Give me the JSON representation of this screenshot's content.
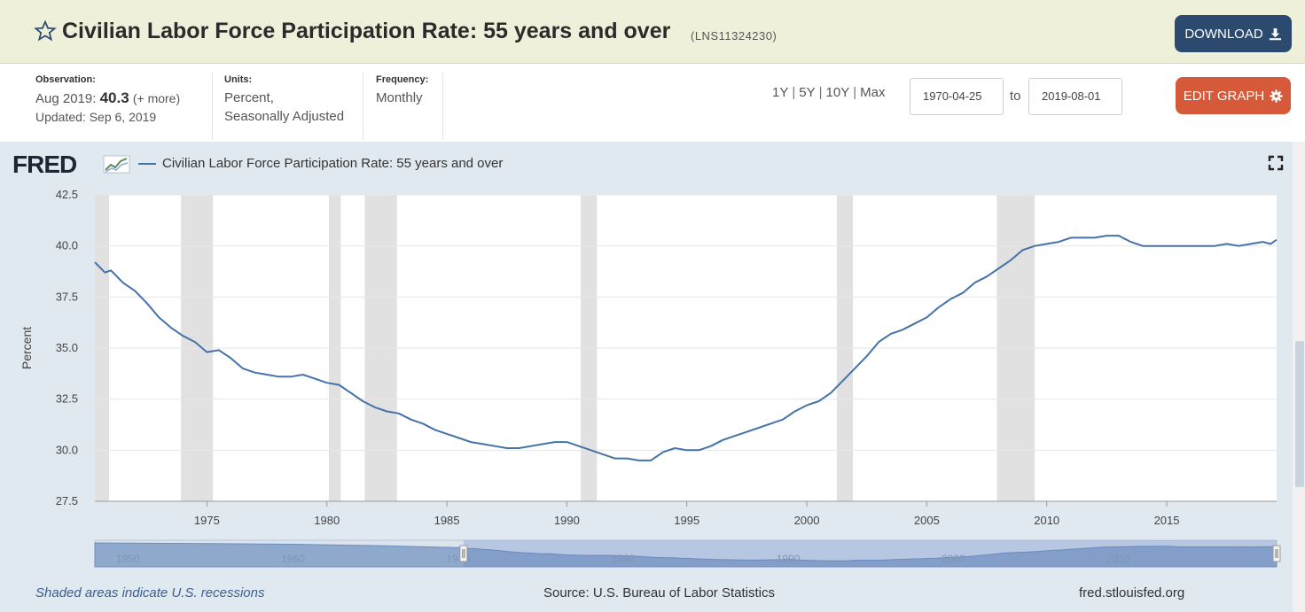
{
  "header": {
    "title": "Civilian Labor Force Participation Rate: 55 years and over",
    "series_id": "(LNS11324230)",
    "download_label": "DOWNLOAD",
    "star_icon": "star-outline-icon",
    "download_icon": "download-icon"
  },
  "meta": {
    "observation": {
      "label": "Observation:",
      "date": "Aug 2019:",
      "value": "40.3",
      "more": "(+ more)",
      "updated": "Updated: Sep 6, 2019"
    },
    "units": {
      "label": "Units:",
      "line1": "Percent,",
      "line2": "Seasonally Adjusted"
    },
    "frequency": {
      "label": "Frequency:",
      "value": "Monthly"
    }
  },
  "controls": {
    "range_1y": "1Y",
    "range_5y": "5Y",
    "range_10y": "10Y",
    "range_max": "Max",
    "start_date": "1970-04-25",
    "to_label": "to",
    "end_date": "2019-08-01",
    "edit_label": "EDIT GRAPH",
    "edit_icon": "gear-icon"
  },
  "graph": {
    "logo": "FRED",
    "legend": "Civilian Labor Force Participation Rate: 55 years and over",
    "fullscreen_icon": "fullscreen-icon"
  },
  "footer": {
    "recession_note": "Shaded areas indicate U.S. recessions",
    "source": "Source: U.S. Bureau of Labor Statistics",
    "site": "fred.stlouisfed.org"
  },
  "colors": {
    "line": "#4572a7",
    "recession": "#e1e1e1",
    "title_bar": "#eff0d9",
    "panel": "#e1e9f0",
    "download": "#2c4a70",
    "edit": "#d65a3a"
  },
  "chart_data": {
    "type": "line",
    "title": "Civilian Labor Force Participation Rate: 55 years and over",
    "ylabel": "Percent",
    "xlabel": "",
    "xlim": [
      1970.33,
      2019.58
    ],
    "ylim": [
      27.5,
      42.5
    ],
    "yticks": [
      27.5,
      30.0,
      32.5,
      35.0,
      37.5,
      40.0,
      42.5
    ],
    "ytick_labels": [
      "27.5",
      "30.0",
      "32.5",
      "35.0",
      "37.5",
      "40.0",
      "42.5"
    ],
    "xticks": [
      1975,
      1980,
      1985,
      1990,
      1995,
      2000,
      2005,
      2010,
      2015
    ],
    "xtick_labels": [
      "1975",
      "1980",
      "1985",
      "1990",
      "1995",
      "2000",
      "2005",
      "2010",
      "2015"
    ],
    "grid": true,
    "legend_position": "top-left",
    "recessions": [
      [
        1969.92,
        1970.92
      ],
      [
        1973.92,
        1975.25
      ],
      [
        1980.08,
        1980.58
      ],
      [
        1981.58,
        1982.92
      ],
      [
        1990.58,
        1991.25
      ],
      [
        2001.25,
        2001.92
      ],
      [
        2007.92,
        2009.5
      ]
    ],
    "series": [
      {
        "name": "Civilian Labor Force Participation Rate: 55 years and over",
        "x": [
          1970.33,
          1970.75,
          1971.0,
          1971.5,
          1972.0,
          1972.5,
          1973.0,
          1973.5,
          1974.0,
          1974.5,
          1975.0,
          1975.5,
          1976.0,
          1976.5,
          1977.0,
          1977.5,
          1978.0,
          1978.5,
          1979.0,
          1979.5,
          1980.0,
          1980.5,
          1981.0,
          1981.5,
          1982.0,
          1982.5,
          1983.0,
          1983.5,
          1984.0,
          1984.5,
          1985.0,
          1985.5,
          1986.0,
          1986.5,
          1987.0,
          1987.5,
          1988.0,
          1988.5,
          1989.0,
          1989.5,
          1990.0,
          1990.5,
          1991.0,
          1991.5,
          1992.0,
          1992.5,
          1993.0,
          1993.5,
          1994.0,
          1994.5,
          1995.0,
          1995.5,
          1996.0,
          1996.5,
          1997.0,
          1997.5,
          1998.0,
          1998.5,
          1999.0,
          1999.5,
          2000.0,
          2000.5,
          2001.0,
          2001.5,
          2002.0,
          2002.5,
          2003.0,
          2003.5,
          2004.0,
          2004.5,
          2005.0,
          2005.5,
          2006.0,
          2006.5,
          2007.0,
          2007.5,
          2008.0,
          2008.5,
          2009.0,
          2009.5,
          2010.0,
          2010.5,
          2011.0,
          2011.5,
          2012.0,
          2012.5,
          2013.0,
          2013.5,
          2014.0,
          2014.5,
          2015.0,
          2015.5,
          2016.0,
          2016.5,
          2017.0,
          2017.5,
          2018.0,
          2018.5,
          2019.0,
          2019.33,
          2019.58
        ],
        "values": [
          39.2,
          38.7,
          38.8,
          38.2,
          37.8,
          37.2,
          36.5,
          36.0,
          35.6,
          35.3,
          34.8,
          34.9,
          34.5,
          34.0,
          33.8,
          33.7,
          33.6,
          33.6,
          33.7,
          33.5,
          33.3,
          33.2,
          32.8,
          32.4,
          32.1,
          31.9,
          31.8,
          31.5,
          31.3,
          31.0,
          30.8,
          30.6,
          30.4,
          30.3,
          30.2,
          30.1,
          30.1,
          30.2,
          30.3,
          30.4,
          30.4,
          30.2,
          30.0,
          29.8,
          29.6,
          29.6,
          29.5,
          29.5,
          29.9,
          30.1,
          30.0,
          30.0,
          30.2,
          30.5,
          30.7,
          30.9,
          31.1,
          31.3,
          31.5,
          31.9,
          32.2,
          32.4,
          32.8,
          33.4,
          34.0,
          34.6,
          35.3,
          35.7,
          35.9,
          36.2,
          36.5,
          37.0,
          37.4,
          37.7,
          38.2,
          38.5,
          38.9,
          39.3,
          39.8,
          40.0,
          40.1,
          40.2,
          40.4,
          40.4,
          40.4,
          40.5,
          40.5,
          40.2,
          40.0,
          40.0,
          40.0,
          40.0,
          40.0,
          40.0,
          40.0,
          40.1,
          40.0,
          40.1,
          40.2,
          40.1,
          40.3
        ]
      }
    ],
    "navigator": {
      "xlim": [
        1948.0,
        2019.58
      ],
      "selection": [
        1970.33,
        2019.58
      ],
      "tick_labels": [
        "1950",
        "1960",
        "1970",
        "1980",
        "1990",
        "2000",
        "2010"
      ],
      "ticks": [
        1950,
        1960,
        1970,
        1980,
        1990,
        2000,
        2010
      ]
    }
  }
}
